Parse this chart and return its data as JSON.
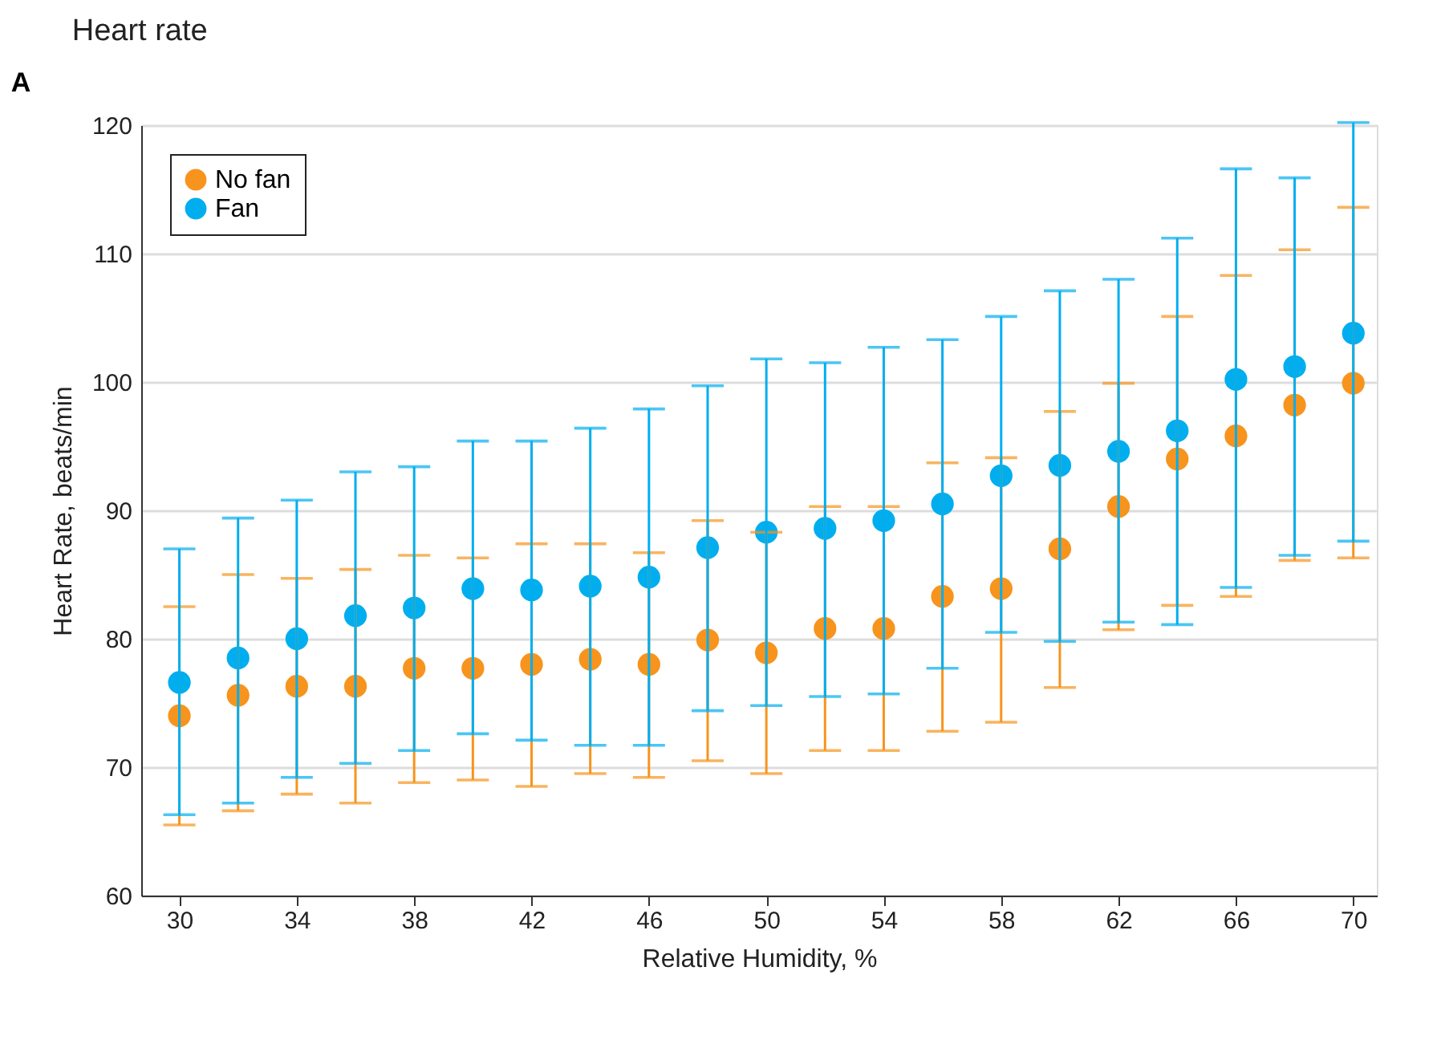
{
  "chart_data": {
    "type": "scatter",
    "title": "Heart rate",
    "annotations": [
      "A"
    ],
    "xlabel": "Relative Humidity, %",
    "ylabel": "Heart Rate, beats/min",
    "x": [
      30,
      32,
      34,
      36,
      38,
      40,
      42,
      44,
      46,
      48,
      50,
      52,
      54,
      56,
      58,
      60,
      62,
      64,
      66,
      68,
      70
    ],
    "xlim": [
      28.7,
      70.8
    ],
    "xticks": [
      30,
      34,
      38,
      42,
      46,
      50,
      54,
      58,
      62,
      66,
      70
    ],
    "ylim": [
      60,
      120
    ],
    "yticks": [
      60,
      70,
      80,
      90,
      100,
      110,
      120
    ],
    "grid": "y",
    "legend": "top left",
    "marker": "circle",
    "series": [
      {
        "name": "No fan",
        "color": "#f7941d",
        "values": [
          74.0,
          75.6,
          76.3,
          76.3,
          77.7,
          77.7,
          78.0,
          78.4,
          78.0,
          79.9,
          78.9,
          80.8,
          80.8,
          83.3,
          83.9,
          87.0,
          90.3,
          94.0,
          95.8,
          98.2,
          99.9
        ],
        "errors": [
          [
            65.5,
            82.5
          ],
          [
            66.6,
            85.0
          ],
          [
            67.9,
            84.7
          ],
          [
            67.2,
            85.4
          ],
          [
            68.8,
            86.5
          ],
          [
            69.0,
            86.3
          ],
          [
            68.5,
            87.4
          ],
          [
            69.5,
            87.4
          ],
          [
            69.2,
            86.7
          ],
          [
            70.5,
            89.2
          ],
          [
            69.5,
            88.3
          ],
          [
            71.3,
            90.3
          ],
          [
            71.3,
            90.3
          ],
          [
            72.8,
            93.7
          ],
          [
            73.5,
            94.1
          ],
          [
            76.2,
            97.7
          ],
          [
            80.7,
            99.9
          ],
          [
            82.6,
            105.1
          ],
          [
            83.3,
            108.3
          ],
          [
            86.1,
            110.3
          ],
          [
            86.3,
            113.6
          ]
        ]
      },
      {
        "name": "Fan",
        "color": "#00aeef",
        "values": [
          76.6,
          78.5,
          80.0,
          81.8,
          82.4,
          83.9,
          83.8,
          84.1,
          84.8,
          87.1,
          88.3,
          88.6,
          89.2,
          90.5,
          92.7,
          93.5,
          94.6,
          96.2,
          100.2,
          101.2,
          103.8
        ],
        "errors": [
          [
            66.3,
            87.0
          ],
          [
            67.2,
            89.4
          ],
          [
            69.2,
            90.8
          ],
          [
            70.3,
            93.0
          ],
          [
            71.3,
            93.4
          ],
          [
            72.6,
            95.4
          ],
          [
            72.1,
            95.4
          ],
          [
            71.7,
            96.4
          ],
          [
            71.7,
            97.9
          ],
          [
            74.4,
            99.7
          ],
          [
            74.8,
            101.8
          ],
          [
            75.5,
            101.5
          ],
          [
            75.7,
            102.7
          ],
          [
            77.7,
            103.3
          ],
          [
            80.5,
            105.1
          ],
          [
            79.8,
            107.1
          ],
          [
            81.3,
            108.0
          ],
          [
            81.1,
            111.2
          ],
          [
            84.0,
            116.6
          ],
          [
            86.5,
            115.9
          ],
          [
            87.6,
            120.2
          ]
        ]
      }
    ]
  }
}
